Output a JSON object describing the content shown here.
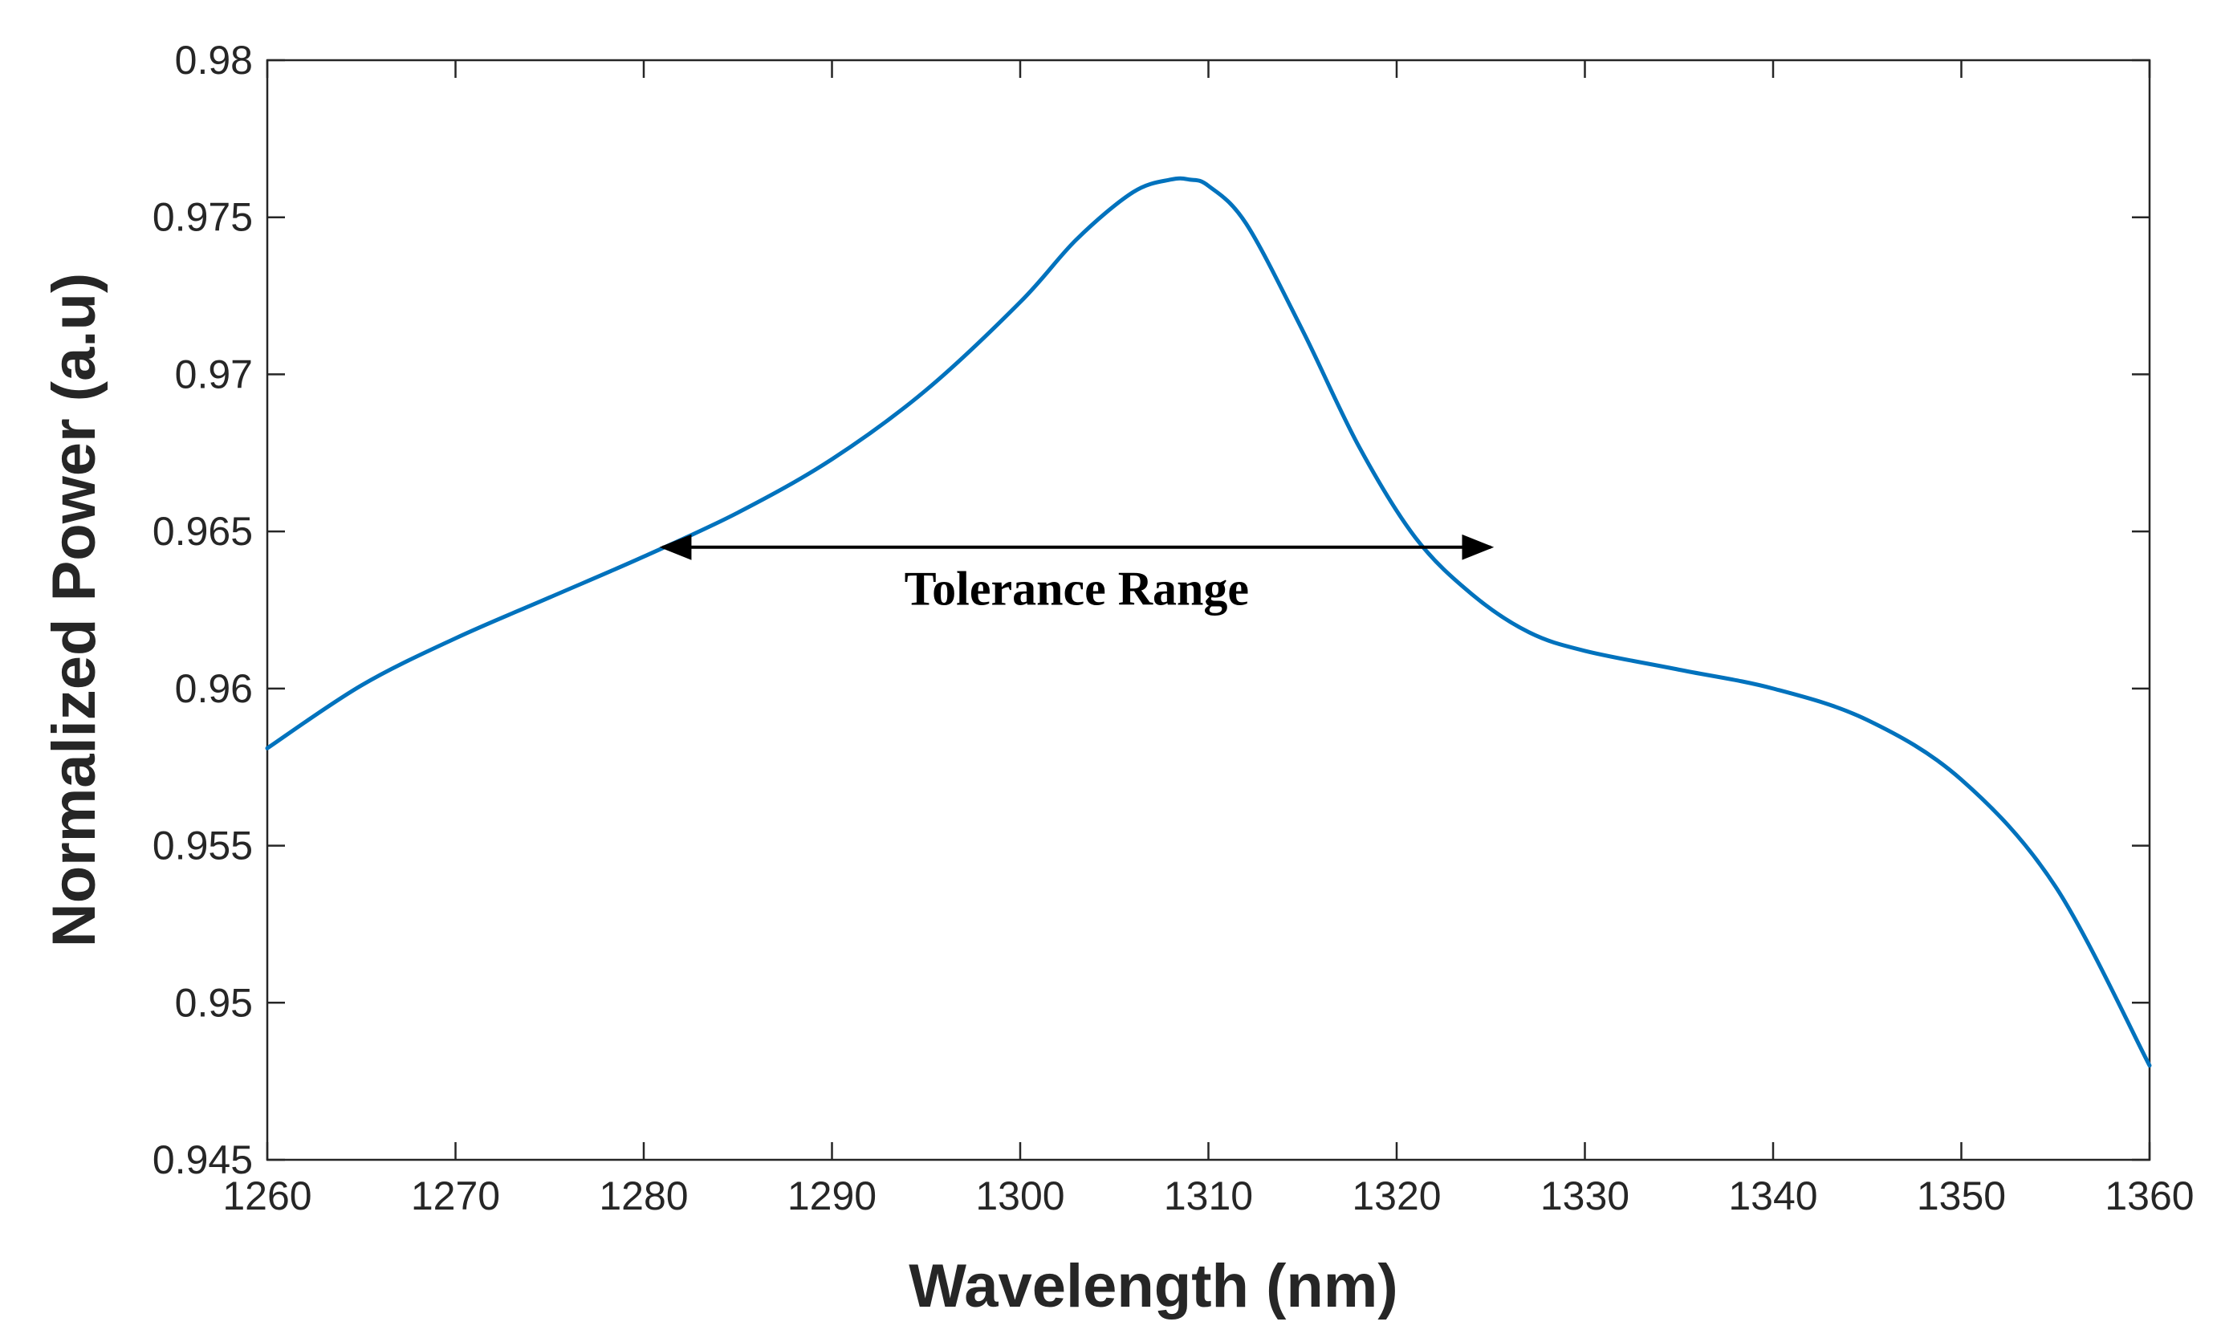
{
  "chart_data": {
    "type": "line",
    "title": "",
    "xlabel": "Wavelength (nm)",
    "ylabel": "Normalized Power (a.u)",
    "xlim": [
      1260,
      1360
    ],
    "ylim": [
      0.945,
      0.98
    ],
    "xticks": [
      1260,
      1270,
      1280,
      1290,
      1300,
      1310,
      1320,
      1330,
      1340,
      1350,
      1360
    ],
    "xtick_labels": [
      "1260",
      "1270",
      "1280",
      "1290",
      "1300",
      "1310",
      "1320",
      "1330",
      "1340",
      "1350",
      "1360"
    ],
    "yticks": [
      0.945,
      0.95,
      0.955,
      0.96,
      0.965,
      0.97,
      0.975,
      0.98
    ],
    "ytick_labels": [
      "0.945",
      "0.95",
      "0.955",
      "0.96",
      "0.965",
      "0.97",
      "0.975",
      "0.98"
    ],
    "grid": false,
    "series": [
      {
        "name": "Normalized Power",
        "color": "#0072BD",
        "x": [
          1260,
          1265,
          1270,
          1275,
          1280,
          1285,
          1290,
          1295,
          1300,
          1303,
          1306,
          1308,
          1309,
          1310,
          1312,
          1315,
          1318,
          1321,
          1324,
          1327,
          1330,
          1335,
          1340,
          1345,
          1350,
          1355,
          1360
        ],
        "y": [
          0.9581,
          0.9601,
          0.9616,
          0.9629,
          0.9642,
          0.9656,
          0.9673,
          0.9695,
          0.9723,
          0.9743,
          0.9758,
          0.9762,
          0.9762,
          0.976,
          0.9748,
          0.9714,
          0.9677,
          0.9648,
          0.963,
          0.9618,
          0.9612,
          0.9606,
          0.96,
          0.959,
          0.9571,
          0.9537,
          0.948
        ]
      }
    ],
    "annotations": [
      {
        "type": "double-arrow",
        "label": "Tolerance Range",
        "x_start": 1281,
        "x_end": 1325,
        "y": 0.9645,
        "color": "#000000"
      }
    ]
  }
}
